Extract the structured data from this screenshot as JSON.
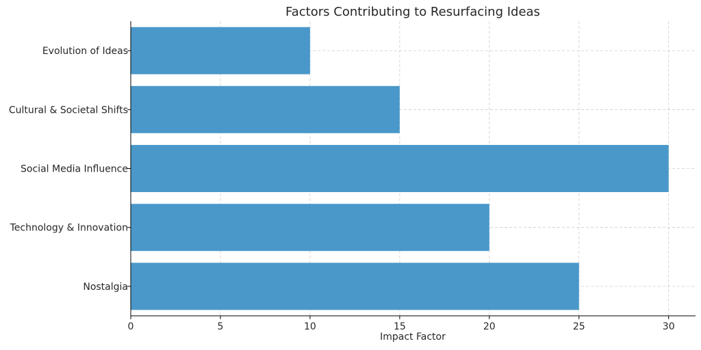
{
  "chart_data": {
    "type": "bar",
    "orientation": "horizontal",
    "title": "Factors Contributing to Resurfacing Ideas",
    "xlabel": "Impact Factor",
    "ylabel": "",
    "categories": [
      "Nostalgia",
      "Technology & Innovation",
      "Social Media Influence",
      "Cultural & Societal Shifts",
      "Evolution of Ideas"
    ],
    "values": [
      25,
      20,
      30,
      15,
      10
    ],
    "xlim": [
      0,
      31.5
    ],
    "xticks": [
      0,
      5,
      10,
      15,
      20,
      25,
      30
    ],
    "bar_color": "#4a98c9",
    "grid": true
  }
}
